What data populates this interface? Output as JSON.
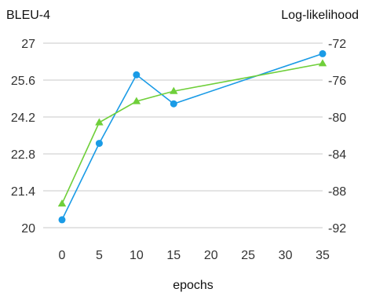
{
  "chart_data": {
    "type": "line",
    "x": [
      0,
      5,
      10,
      15,
      35
    ],
    "xlabel": "epochs",
    "x_ticks": [
      0,
      5,
      10,
      15,
      20,
      25,
      30,
      35
    ],
    "xlim": [
      0,
      35
    ],
    "y_left": {
      "label": "BLEU-4",
      "ylim": [
        20,
        27
      ],
      "ticks": [
        "20",
        "21.4",
        "22.8",
        "24.2",
        "25.6",
        "27"
      ]
    },
    "y_right": {
      "label": "Log-likelihood",
      "ylim": [
        -92,
        -72
      ],
      "ticks": [
        "-92",
        "-88",
        "-84",
        "-80",
        "-76",
        "-72"
      ]
    },
    "grid": "horizontal",
    "series": [
      {
        "axis": "left",
        "color": "#1a9be6",
        "marker": "circle",
        "values": [
          20.3,
          23.2,
          25.8,
          24.7,
          26.6
        ]
      },
      {
        "axis": "right",
        "color": "#6fcf3a",
        "marker": "triangle",
        "values": [
          -89.4,
          -80.6,
          -78.3,
          -77.2,
          -74.2
        ]
      }
    ]
  }
}
